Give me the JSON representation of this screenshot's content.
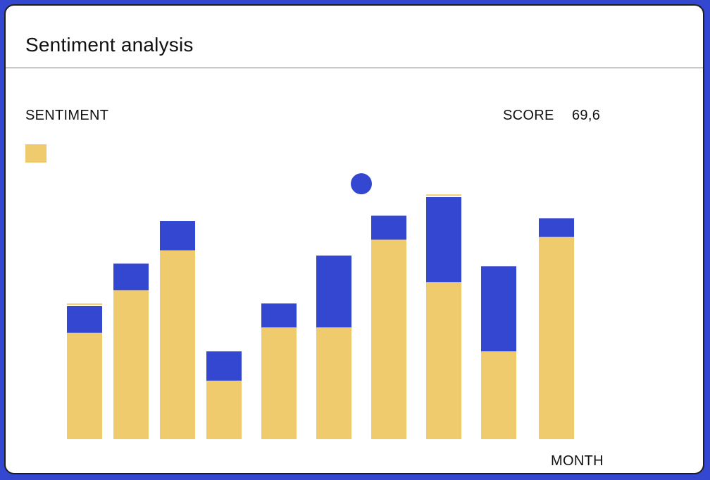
{
  "card": {
    "title": "Sentiment analysis"
  },
  "labels": {
    "sentiment": "SENTIMENT",
    "score_label": "SCORE",
    "score_value": "69,6",
    "xlabel": "MONTH"
  },
  "colors": {
    "positive": "#f0cb6e",
    "negative": "#3347d1",
    "background": "#3347d1"
  },
  "chart_data": {
    "type": "bar",
    "stacked": true,
    "title": "",
    "xlabel": "MONTH",
    "ylabel": "SENTIMENT",
    "categories": [
      "",
      "",
      "",
      "",
      "",
      "",
      "",
      "",
      "",
      ""
    ],
    "ylim": [
      0,
      100
    ],
    "series": [
      {
        "values": [
          40,
          56,
          71,
          22,
          42,
          42,
          75,
          59,
          33,
          76
        ]
      },
      {
        "values": [
          10,
          10,
          11,
          11,
          9,
          27,
          9,
          32,
          32,
          7
        ]
      },
      {
        "values": [
          1,
          0,
          0,
          0,
          0,
          0,
          0,
          1,
          0,
          0
        ]
      }
    ],
    "marker": {
      "x_index": 5.5,
      "y": 96
    },
    "grid": false
  }
}
